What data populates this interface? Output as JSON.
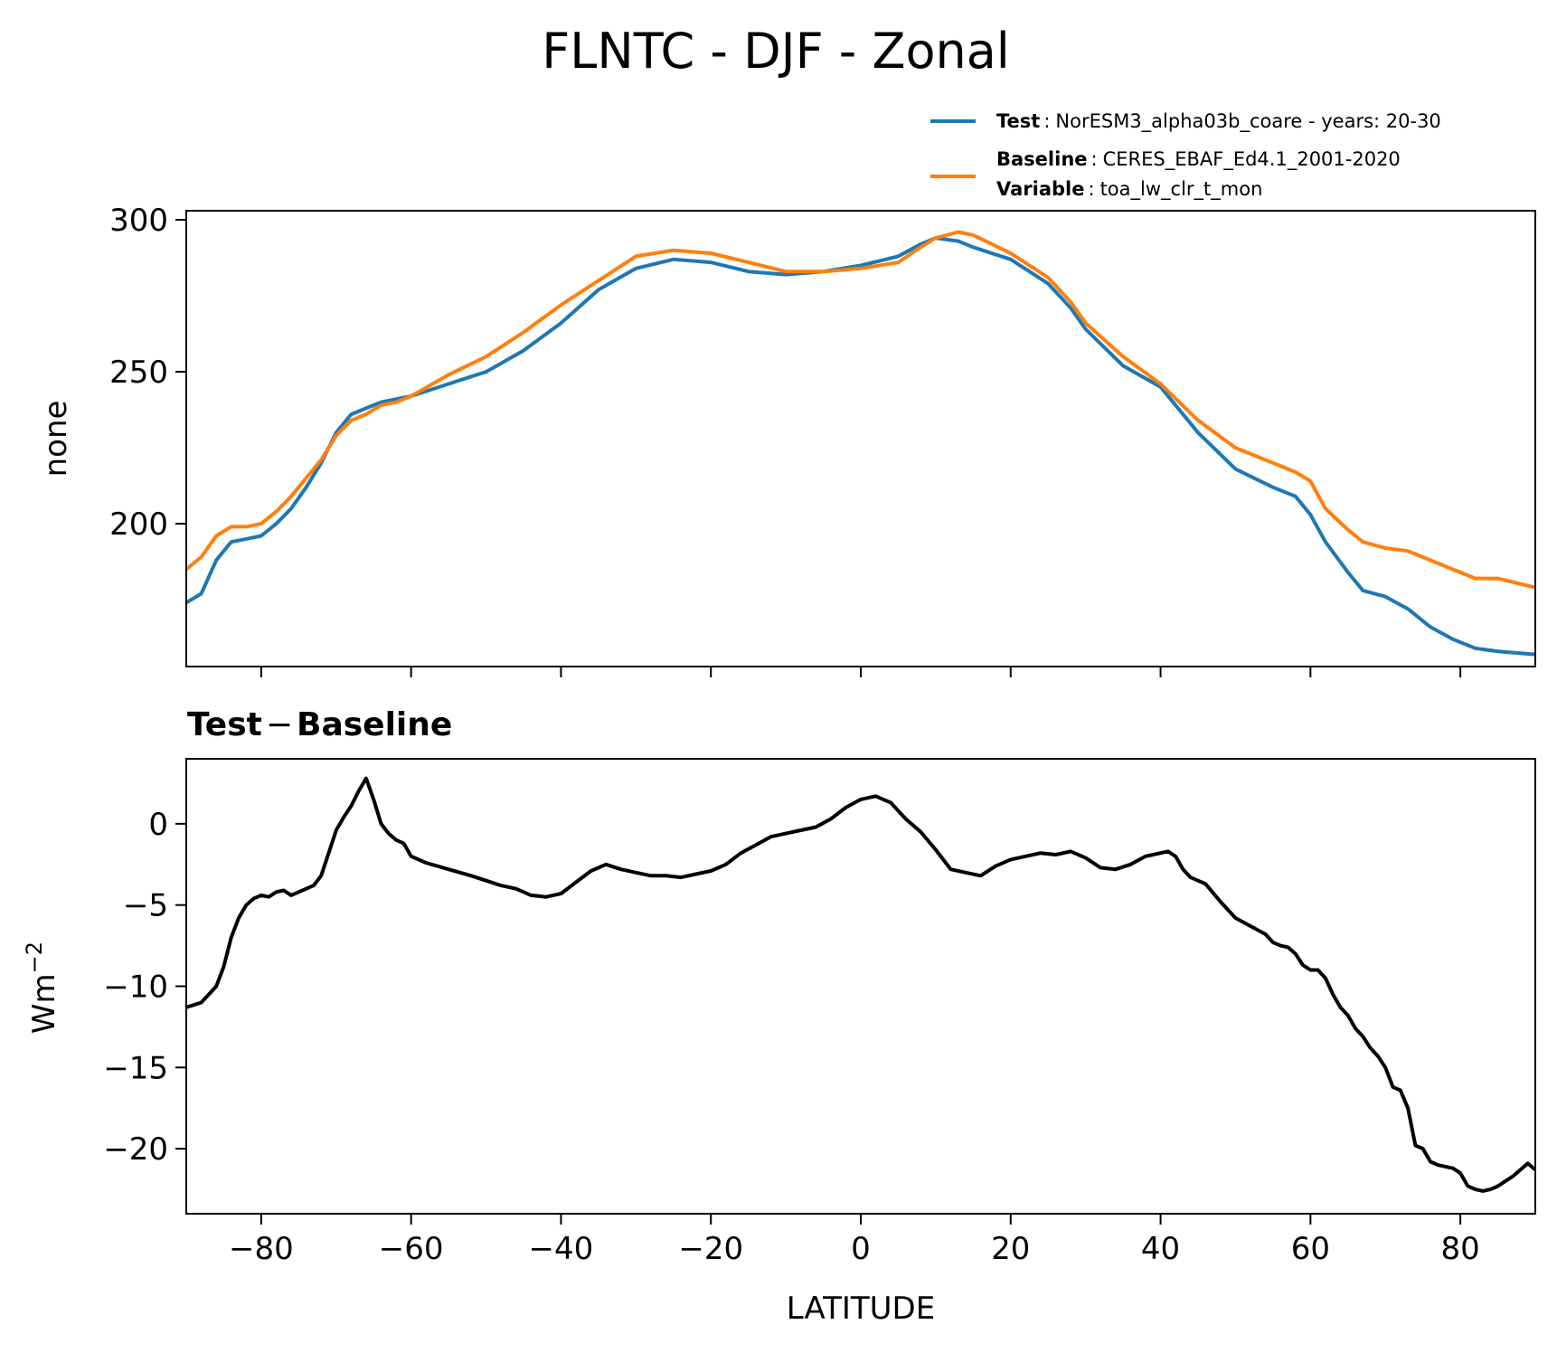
{
  "figure_title": "FLNTC - DJF - Zonal",
  "legend": {
    "test": {
      "label": "Test",
      "text": "NorESM3_alpha03b_coare - years: 20-30",
      "color": "#1f77b4"
    },
    "baseline": {
      "label": "Baseline",
      "text": "CERES_EBAF_Ed4.1_2001-2020",
      "color": "#ff7f0e"
    },
    "variable": {
      "label": "Variable",
      "text": "toa_lw_clr_t_mon"
    },
    "separator": ":"
  },
  "diff_title": {
    "part1": "Test",
    "minus": "−",
    "part2": "Baseline"
  },
  "chart_data": [
    {
      "type": "line",
      "ylabel": "none",
      "xlim": [
        -90,
        90
      ],
      "ylim": [
        153,
        303
      ],
      "yticks": [
        200,
        250,
        300
      ],
      "ytick_labels": [
        "200",
        "250",
        "300"
      ],
      "xticks": [
        -80,
        -60,
        -40,
        -20,
        0,
        20,
        40,
        60,
        80
      ],
      "series": [
        {
          "name": "Test",
          "color": "#1f77b4",
          "x": [
            -90,
            -88,
            -86,
            -84,
            -82,
            -80,
            -78,
            -76,
            -74,
            -72,
            -70,
            -68,
            -66,
            -64,
            -62,
            -60,
            -55,
            -50,
            -45,
            -40,
            -35,
            -30,
            -25,
            -20,
            -15,
            -10,
            -5,
            0,
            5,
            8,
            10,
            13,
            15,
            20,
            25,
            28,
            30,
            35,
            40,
            45,
            50,
            55,
            58,
            60,
            62,
            65,
            67,
            70,
            73,
            76,
            79,
            82,
            85,
            90
          ],
          "values": [
            174,
            177,
            188,
            194,
            195,
            196,
            200,
            205,
            212,
            220,
            230,
            236,
            238,
            240,
            241,
            242,
            246,
            250,
            257,
            266,
            277,
            284,
            287,
            286,
            283,
            282,
            283,
            285,
            288,
            292,
            294,
            293,
            291,
            287,
            279,
            271,
            264,
            252,
            245,
            230,
            218,
            212,
            209,
            203,
            194,
            184,
            178,
            176,
            172,
            166,
            162,
            159,
            158,
            157
          ]
        },
        {
          "name": "Baseline",
          "color": "#ff7f0e",
          "x": [
            -90,
            -88,
            -86,
            -84,
            -82,
            -80,
            -78,
            -76,
            -74,
            -72,
            -70,
            -68,
            -66,
            -64,
            -62,
            -60,
            -55,
            -50,
            -45,
            -40,
            -35,
            -30,
            -25,
            -20,
            -15,
            -10,
            -5,
            0,
            5,
            8,
            10,
            13,
            15,
            20,
            25,
            28,
            30,
            35,
            40,
            45,
            50,
            55,
            58,
            60,
            62,
            65,
            67,
            70,
            73,
            76,
            79,
            82,
            85,
            90
          ],
          "values": [
            185,
            189,
            196,
            199,
            199,
            200,
            204,
            209,
            215,
            221,
            229,
            234,
            236,
            239,
            240,
            242,
            249,
            255,
            263,
            272,
            280,
            288,
            290,
            289,
            286,
            283,
            283,
            284,
            286,
            291,
            294,
            296,
            295,
            289,
            281,
            273,
            266,
            255,
            246,
            234,
            225,
            220,
            217,
            214,
            205,
            198,
            194,
            192,
            191,
            188,
            185,
            182,
            182,
            179
          ]
        }
      ]
    },
    {
      "type": "line",
      "title": "Test − Baseline",
      "xlabel": "LATITUDE",
      "ylabel_base": "Wm",
      "ylabel_sup": "−2",
      "xlim": [
        -90,
        90
      ],
      "ylim": [
        -24,
        4
      ],
      "yticks": [
        0,
        -5,
        -10,
        -15,
        -20
      ],
      "ytick_labels": [
        "0",
        "−5",
        "−10",
        "−15",
        "−20"
      ],
      "xticks": [
        -80,
        -60,
        -40,
        -20,
        0,
        20,
        40,
        60,
        80
      ],
      "xtick_labels": [
        "−80",
        "−60",
        "−40",
        "−20",
        "0",
        "20",
        "40",
        "60",
        "80"
      ],
      "series": [
        {
          "name": "Test − Baseline",
          "color": "#000000",
          "x": [
            -90,
            -88,
            -86,
            -85,
            -84,
            -83,
            -82,
            -81,
            -80,
            -79,
            -78,
            -77,
            -76,
            -75,
            -74,
            -73,
            -72,
            -71,
            -70,
            -69,
            -68,
            -67,
            -66,
            -65,
            -64,
            -63,
            -62,
            -61,
            -60,
            -58,
            -55,
            -52,
            -50,
            -48,
            -46,
            -44,
            -42,
            -40,
            -38,
            -36,
            -34,
            -32,
            -30,
            -28,
            -26,
            -24,
            -22,
            -20,
            -18,
            -16,
            -14,
            -12,
            -10,
            -8,
            -6,
            -4,
            -2,
            0,
            2,
            3,
            4,
            5,
            6,
            8,
            10,
            12,
            14,
            16,
            18,
            20,
            22,
            24,
            26,
            28,
            30,
            32,
            34,
            36,
            38,
            40,
            41,
            42,
            43,
            44,
            45,
            46,
            48,
            50,
            52,
            54,
            55,
            56,
            57,
            58,
            59,
            60,
            61,
            62,
            63,
            64,
            65,
            66,
            67,
            68,
            69,
            70,
            71,
            72,
            73,
            74,
            75,
            76,
            77,
            78,
            79,
            80,
            81,
            82,
            83,
            84,
            85,
            86,
            87,
            88,
            89,
            90
          ],
          "values": [
            -11.3,
            -11.0,
            -10.0,
            -8.8,
            -7.0,
            -5.8,
            -5.0,
            -4.6,
            -4.4,
            -4.5,
            -4.2,
            -4.1,
            -4.4,
            -4.2,
            -4.0,
            -3.8,
            -3.2,
            -1.8,
            -0.4,
            0.4,
            1.1,
            2.0,
            2.8,
            1.5,
            0.0,
            -0.6,
            -1.0,
            -1.2,
            -2.0,
            -2.4,
            -2.8,
            -3.2,
            -3.5,
            -3.8,
            -4.0,
            -4.4,
            -4.5,
            -4.3,
            -3.6,
            -2.9,
            -2.5,
            -2.8,
            -3.0,
            -3.2,
            -3.2,
            -3.3,
            -3.1,
            -2.9,
            -2.5,
            -1.8,
            -1.3,
            -0.8,
            -0.6,
            -0.4,
            -0.2,
            0.3,
            1.0,
            1.5,
            1.7,
            1.5,
            1.3,
            0.8,
            0.3,
            -0.5,
            -1.6,
            -2.8,
            -3.0,
            -3.2,
            -2.6,
            -2.2,
            -2.0,
            -1.8,
            -1.9,
            -1.7,
            -2.1,
            -2.7,
            -2.8,
            -2.5,
            -2.0,
            -1.8,
            -1.7,
            -2.0,
            -2.8,
            -3.3,
            -3.5,
            -3.7,
            -4.8,
            -5.8,
            -6.3,
            -6.8,
            -7.3,
            -7.5,
            -7.6,
            -8.0,
            -8.7,
            -9.0,
            -9.0,
            -9.5,
            -10.5,
            -11.3,
            -11.8,
            -12.6,
            -13.1,
            -13.8,
            -14.3,
            -15.0,
            -16.2,
            -16.4,
            -17.5,
            -19.8,
            -20.0,
            -20.8,
            -21.0,
            -21.1,
            -21.2,
            -21.5,
            -22.3,
            -22.5,
            -22.6,
            -22.5,
            -22.3,
            -22.0,
            -21.7,
            -21.3,
            -20.9,
            -21.3
          ]
        }
      ]
    }
  ]
}
